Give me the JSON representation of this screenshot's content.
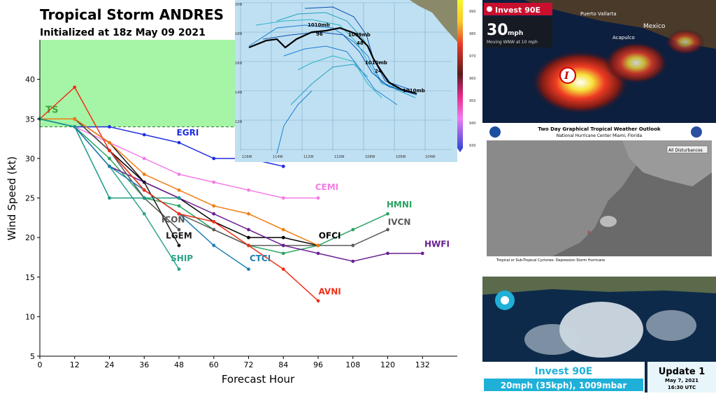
{
  "header": {
    "title": "Tropical Storm ANDRES",
    "subtitle": "Initialized at 18z May 09 2021"
  },
  "chart_data": {
    "type": "line",
    "xlabel": "Forecast Hour",
    "ylabel": "Wind Speed (kt)",
    "xlim": [
      0,
      144
    ],
    "ylim": [
      5,
      45
    ],
    "xticks": [
      0,
      12,
      24,
      36,
      48,
      60,
      72,
      84,
      96,
      108,
      120,
      132
    ],
    "yticks": [
      5,
      10,
      15,
      20,
      25,
      30,
      35,
      40
    ],
    "ts_threshold": 34,
    "ts_label": "TS",
    "series": [
      {
        "name": "EGRI",
        "color": "#1e2ee0",
        "x": [
          0,
          12,
          24,
          36,
          48,
          60,
          72,
          84
        ],
        "y": [
          35,
          34,
          34,
          33,
          32,
          30,
          30,
          29
        ]
      },
      {
        "name": "CEMI",
        "color": "#f47be6",
        "x": [
          0,
          12,
          24,
          36,
          48,
          60,
          72,
          84,
          96
        ],
        "y": [
          35,
          34,
          32,
          30,
          28,
          27,
          26,
          25,
          25
        ]
      },
      {
        "name": "HMNI",
        "color": "#2aa463",
        "x": [
          0,
          12,
          24,
          36,
          48,
          60,
          72,
          84,
          96,
          108,
          120
        ],
        "y": [
          35,
          34,
          30,
          25,
          24,
          21,
          19,
          18,
          19,
          21,
          23
        ]
      },
      {
        "name": "IVCN",
        "color": "#5b5b5b",
        "x": [
          0,
          12,
          24,
          36,
          48,
          60,
          72,
          84,
          96,
          108,
          120
        ],
        "y": [
          35,
          35,
          31,
          26,
          23,
          21,
          19,
          19,
          19,
          19,
          21
        ]
      },
      {
        "name": "OFCI",
        "color": "#000000",
        "x": [
          0,
          12,
          24,
          36,
          48,
          60,
          72,
          84,
          96
        ],
        "y": [
          35,
          35,
          31,
          27,
          25,
          22,
          20,
          20,
          19
        ]
      },
      {
        "name": "HWFI",
        "color": "#6a1f94",
        "x": [
          0,
          12,
          24,
          36,
          48,
          60,
          72,
          84,
          96,
          108,
          120,
          132
        ],
        "y": [
          35,
          34,
          29,
          27,
          25,
          23,
          21,
          19,
          18,
          17,
          18,
          18
        ]
      },
      {
        "name": "ICON",
        "color": "#555555",
        "x": [
          0,
          12,
          24,
          36,
          48
        ],
        "y": [
          35,
          35,
          31,
          25,
          21
        ]
      },
      {
        "name": "LGEM",
        "color": "#1a1a1a",
        "x": [
          0,
          12,
          24,
          36,
          48
        ],
        "y": [
          35,
          35,
          32,
          27,
          19
        ]
      },
      {
        "name": "SHIP",
        "color": "#2aa48a",
        "x": [
          0,
          12,
          24,
          36,
          48
        ],
        "y": [
          35,
          34,
          29,
          23,
          16
        ]
      },
      {
        "name": "CTCI",
        "color": "#1f7fb4",
        "x": [
          0,
          12,
          24,
          36,
          48,
          60,
          72
        ],
        "y": [
          35,
          34,
          29,
          26,
          23,
          19,
          16
        ]
      },
      {
        "name": "AVNI",
        "color": "#f02f16",
        "x": [
          0,
          12,
          24,
          36,
          48,
          60,
          72,
          84,
          96
        ],
        "y": [
          35,
          39,
          31,
          26,
          23,
          22,
          19,
          16,
          12
        ]
      },
      {
        "name": "orange",
        "color": "#f07d12",
        "x": [
          0,
          12,
          24,
          36,
          48,
          60,
          72,
          84,
          96
        ],
        "y": [
          35,
          35,
          32,
          28,
          26,
          24,
          23,
          21,
          19
        ]
      },
      {
        "name": "teal2",
        "color": "#1a9a84",
        "x": [
          0,
          12,
          24,
          36,
          48
        ],
        "y": [
          35,
          34,
          25,
          25,
          25
        ]
      }
    ],
    "labels": [
      {
        "text": "EGRI",
        "color": "#1e2ee0",
        "x": 51,
        "y": 32.9
      },
      {
        "text": "CEMI",
        "color": "#f47be6",
        "x": 99,
        "y": 26.0
      },
      {
        "text": "HMNI",
        "color": "#2aa463",
        "x": 124,
        "y": 23.8
      },
      {
        "text": "ICON",
        "color": "#555555",
        "x": 46,
        "y": 21.9
      },
      {
        "text": "IVCN",
        "color": "#5b5b5b",
        "x": 124,
        "y": 21.6
      },
      {
        "text": "LGEM",
        "color": "#1a1a1a",
        "x": 48,
        "y": 19.9
      },
      {
        "text": "OFCI",
        "color": "#000000",
        "x": 100,
        "y": 19.9
      },
      {
        "text": "HWFI",
        "color": "#6a1f94",
        "x": 137,
        "y": 18.8
      },
      {
        "text": "SHIP",
        "color": "#2aa48a",
        "x": 49,
        "y": 17.0
      },
      {
        "text": "CTCI",
        "color": "#1f7fb4",
        "x": 76,
        "y": 17.0
      },
      {
        "text": "AVNI",
        "color": "#f02f16",
        "x": 100,
        "y": 12.8
      }
    ]
  },
  "track_map": {
    "labels": [
      "1010mb",
      "96",
      "1009mb",
      "48",
      "1010mb",
      "24",
      "1010mb"
    ],
    "lat_ticks": [
      "20N",
      "18N",
      "16N",
      "14N",
      "12N",
      "10N",
      "8N"
    ],
    "lon_ticks": [
      "116W",
      "114W",
      "112W",
      "110W",
      "108W",
      "106W",
      "104W"
    ],
    "scale_ticks": [
      "990",
      "980",
      "970",
      "960",
      "950",
      "940",
      "930"
    ]
  },
  "satellite_tile": {
    "badge": "Invest 90E",
    "speed": "30",
    "speed_unit": "mph",
    "motion": "Moving WNW at 10 mph",
    "places": [
      "Puerto Vallarta",
      "Mexico",
      "Acapulco"
    ]
  },
  "outlook_tile": {
    "title": "Two Day Graphical Tropical Weather Outlook",
    "org": "National Hurricane Center  Miami, Florida",
    "toggle": "All Disturbances",
    "legend": "Tropical or Sub-Tropical Cyclones:  Depression  Storm  Hurricane"
  },
  "update_tile": {
    "headline": "Invest 90E",
    "stats": "20mph (35kph), 1009mbar",
    "update_label": "Update 1",
    "date": "May 7, 2021",
    "time": "16:30 UTC"
  },
  "colors": {
    "ts_zone": "#a6f5a6",
    "ts_line": "#2a7a2a",
    "header_bar": "#1fb0d8",
    "update_box": "#e8f6fb"
  }
}
